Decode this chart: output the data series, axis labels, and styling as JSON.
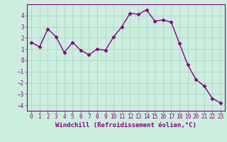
{
  "x": [
    0,
    1,
    2,
    3,
    4,
    5,
    6,
    7,
    8,
    9,
    10,
    11,
    12,
    13,
    14,
    15,
    16,
    17,
    18,
    19,
    20,
    21,
    22,
    23
  ],
  "y": [
    1.6,
    1.2,
    2.8,
    2.1,
    0.7,
    1.6,
    0.9,
    0.5,
    1.0,
    0.9,
    2.1,
    3.0,
    4.2,
    4.1,
    4.5,
    3.5,
    3.6,
    3.4,
    1.5,
    -0.4,
    -1.7,
    -2.3,
    -3.4,
    -3.8
  ],
  "line_color": "#880088",
  "marker": "D",
  "marker_size": 2.5,
  "bg_color": "#cceedd",
  "grid_color": "#aacccc",
  "xlabel": "Windchill (Refroidissement éolien,°C)",
  "xlim": [
    -0.5,
    23.5
  ],
  "ylim": [
    -4.5,
    5.0
  ],
  "yticks": [
    -4,
    -3,
    -2,
    -1,
    0,
    1,
    2,
    3,
    4
  ],
  "xticks": [
    0,
    1,
    2,
    3,
    4,
    5,
    6,
    7,
    8,
    9,
    10,
    11,
    12,
    13,
    14,
    15,
    16,
    17,
    18,
    19,
    20,
    21,
    22,
    23
  ],
  "tick_color": "#880088",
  "spine_color": "#880088",
  "xlabel_color": "#880088",
  "xlabel_fontsize": 6.5,
  "tick_fontsize": 5.5,
  "linewidth": 1.0
}
